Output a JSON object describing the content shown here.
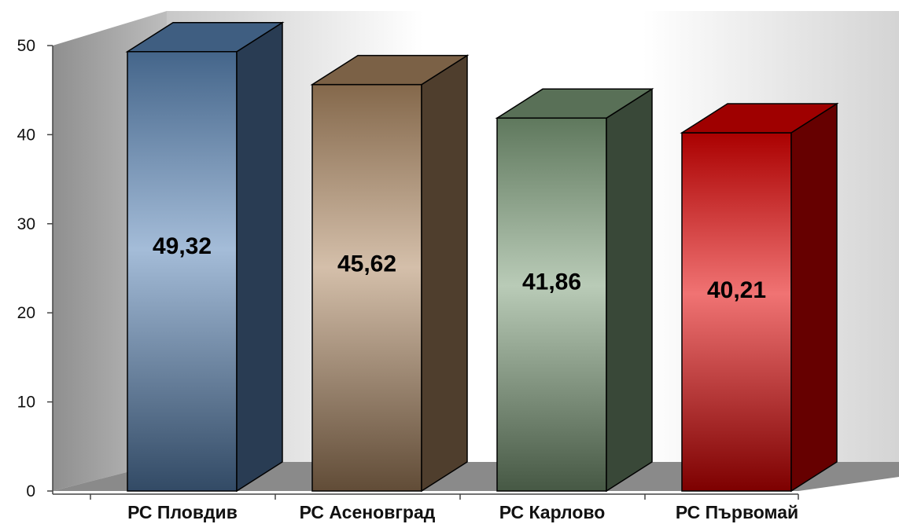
{
  "chart_data": {
    "type": "bar",
    "categories": [
      "РС Пловдив",
      "РС Асеновград",
      "РС Карлово",
      "РС Първомай"
    ],
    "values": [
      49.32,
      45.62,
      41.86,
      40.21
    ],
    "value_labels": [
      "49,32",
      "45,62",
      "41,86",
      "40,21"
    ],
    "ylim": [
      0,
      50
    ],
    "yticks": [
      0,
      10,
      20,
      30,
      40,
      50
    ],
    "ytick_labels": [
      "0",
      "10",
      "20",
      "30",
      "40",
      "50"
    ],
    "grid": false,
    "bar_colors": [
      "#5a86b8",
      "#b08a64",
      "#7fa07c",
      "#e30000"
    ]
  }
}
